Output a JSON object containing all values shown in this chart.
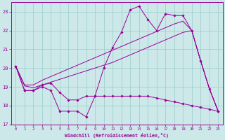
{
  "xlabel": "Windchill (Refroidissement éolien,°C)",
  "bg_color": "#cce8e8",
  "grid_color": "#99cccc",
  "line_color": "#990099",
  "xlim": [
    -0.5,
    23.5
  ],
  "ylim": [
    17,
    23.5
  ],
  "yticks": [
    17,
    18,
    19,
    20,
    21,
    22,
    23
  ],
  "xticks": [
    0,
    1,
    2,
    3,
    4,
    5,
    6,
    7,
    8,
    9,
    10,
    11,
    12,
    13,
    14,
    15,
    16,
    17,
    18,
    19,
    20,
    21,
    22,
    23
  ],
  "series_with_markers": [
    [
      20.1,
      18.8,
      18.8,
      19.0,
      18.8,
      17.7,
      17.7,
      17.7,
      17.4,
      18.5,
      20.0,
      21.1,
      21.9,
      23.1,
      23.3,
      22.6,
      22.0,
      22.9,
      22.8,
      22.8,
      22.0,
      20.4,
      18.9,
      17.7
    ],
    [
      20.1,
      18.8,
      18.8,
      19.1,
      19.2,
      18.7,
      18.3,
      18.3,
      18.5,
      18.5,
      18.5,
      18.5,
      18.5,
      18.5,
      18.5,
      18.5,
      18.4,
      18.3,
      18.2,
      18.1,
      18.0,
      17.9,
      17.8,
      17.7
    ]
  ],
  "series_plain": [
    [
      20.1,
      19.05,
      18.95,
      19.1,
      19.25,
      19.4,
      19.55,
      19.7,
      19.85,
      20.0,
      20.15,
      20.3,
      20.5,
      20.7,
      20.9,
      21.1,
      21.3,
      21.5,
      21.7,
      21.9,
      22.0,
      20.4,
      18.9,
      17.7
    ],
    [
      20.1,
      19.1,
      19.1,
      19.35,
      19.55,
      19.75,
      19.95,
      20.15,
      20.35,
      20.55,
      20.75,
      20.95,
      21.15,
      21.35,
      21.55,
      21.75,
      21.95,
      22.15,
      22.35,
      22.5,
      22.0,
      20.4,
      18.9,
      17.7
    ]
  ]
}
